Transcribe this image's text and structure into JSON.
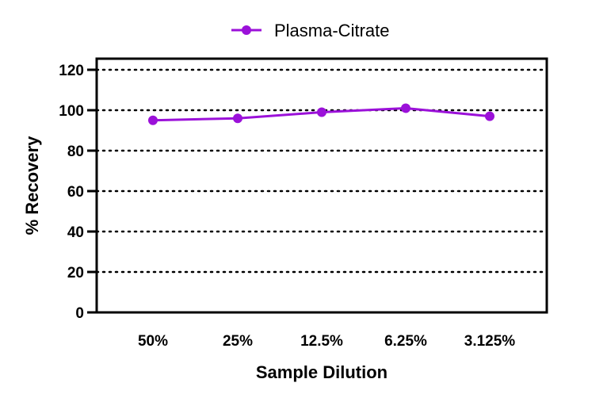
{
  "chart_data": {
    "type": "line",
    "categories": [
      "50%",
      "25%",
      "12.5%",
      "6.25%",
      "3.125%"
    ],
    "series": [
      {
        "name": "Plasma-Citrate",
        "values": [
          95,
          96,
          99,
          101,
          97
        ],
        "color": "#9b11d9"
      }
    ],
    "xlabel": "Sample Dilution",
    "ylabel": "% Recovery",
    "ylim": [
      0,
      120
    ],
    "yticks": [
      0,
      20,
      40,
      60,
      80,
      100,
      120
    ],
    "grid": "horizontal-dotted",
    "legend_position": "top-center"
  }
}
